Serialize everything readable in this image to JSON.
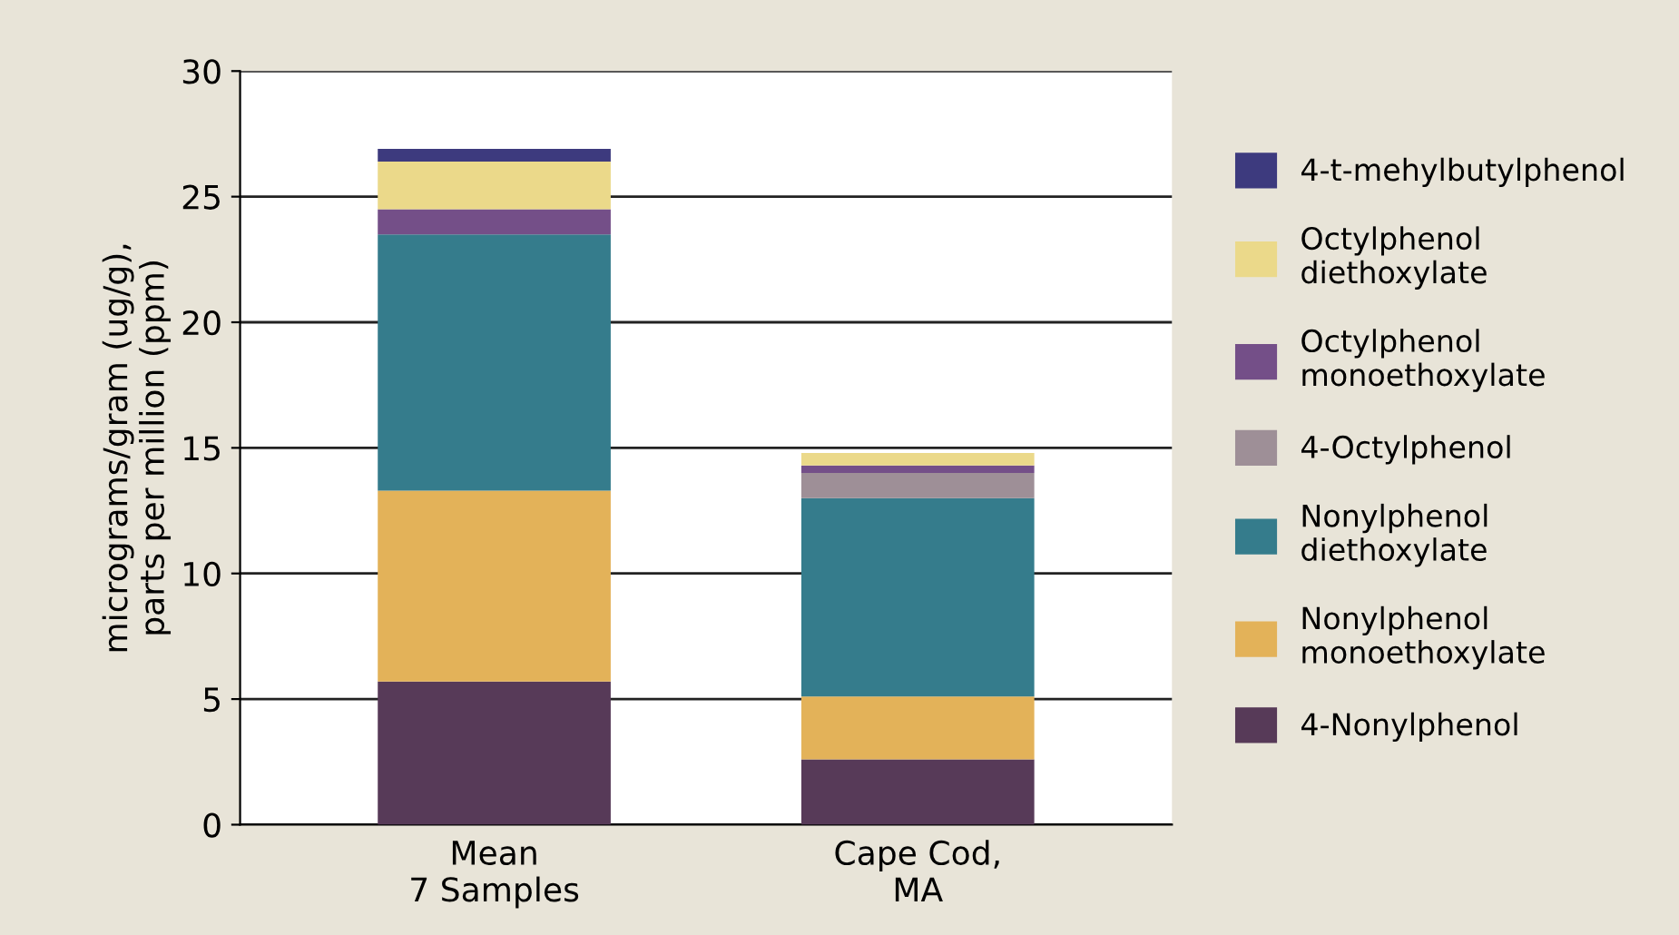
{
  "chart_data": {
    "type": "bar",
    "stacked": true,
    "ylabel": "micrograms/gram (ug/g),\nparts per million (ppm)",
    "categories": [
      "Mean\n7 Samples",
      "Cape Cod,\nMA"
    ],
    "series": [
      {
        "name": "4-Nonylphenol",
        "color": "#573a58",
        "values": [
          5.7,
          2.6
        ]
      },
      {
        "name": "Nonylphenol\nmonoethoxylate",
        "color": "#e3b259",
        "values": [
          7.6,
          2.5
        ]
      },
      {
        "name": "Nonylphenol\ndiethoxylate",
        "color": "#357c8c",
        "values": [
          10.2,
          7.9
        ]
      },
      {
        "name": "4-Octylphenol",
        "color": "#9e8f97",
        "values": [
          0,
          1.0
        ]
      },
      {
        "name": "Octylphenol\nmonoethoxylate",
        "color": "#744f88",
        "values": [
          1.0,
          0.3
        ]
      },
      {
        "name": "Octylphenol\ndiethoxylate",
        "color": "#ebd98a",
        "values": [
          1.9,
          0.5
        ]
      },
      {
        "name": "4-t-mehylbutylphenol",
        "color": "#3d3a7e",
        "values": [
          0.5,
          0
        ]
      }
    ],
    "ylim": [
      0,
      30
    ],
    "yticks": [
      0,
      5,
      10,
      15,
      20,
      25,
      30
    ],
    "grid": "y",
    "legend": "right"
  }
}
